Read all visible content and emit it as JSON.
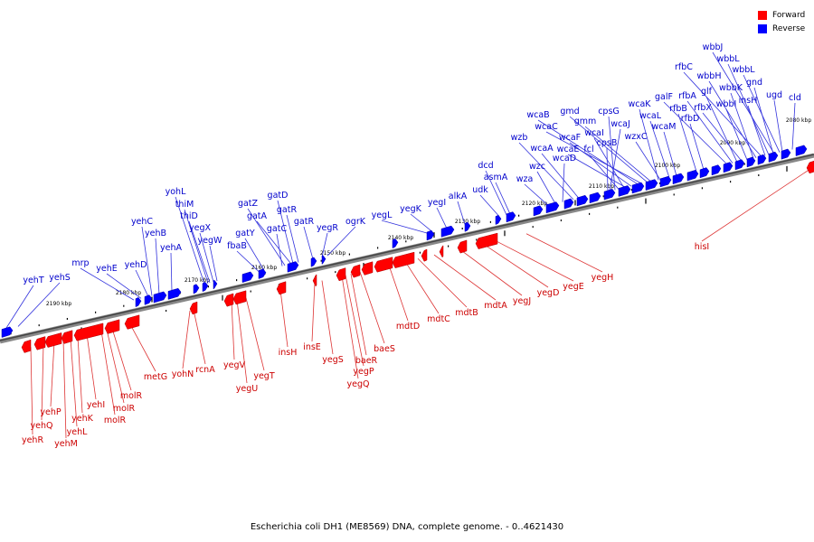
{
  "legend": {
    "forward": "Forward",
    "reverse": "Reverse"
  },
  "colors": {
    "forward": "#ff0000",
    "reverse": "#0000ff",
    "forward_label": "#cc0000",
    "reverse_label": "#0000cc",
    "forward_line": "#dd3333",
    "reverse_line": "#3333dd"
  },
  "caption": "Escherichia coli DH1 (ME8569) DNA, complete genome. - 0..4621430",
  "scale_labels": [
    "2080 kbp",
    "2090 kbp",
    "2100 kbp",
    "2110 kbp",
    "2120 kbp",
    "2130 kbp",
    "2140 kbp",
    "2150 kbp",
    "2160 kbp",
    "2170 kbp",
    "2180 kbp",
    "2190 kbp"
  ],
  "reverse_genes": [
    "wbbJ",
    "wbbL",
    "rfbC",
    "wbbH",
    "wbbL",
    "glf",
    "wbbK",
    "gnd",
    "galF",
    "rfbA",
    "rfbX",
    "wbbI",
    "insH",
    "ugd",
    "cld",
    "gmd",
    "gmm",
    "wcaB",
    "wcaC",
    "wcaF",
    "wcaE",
    "fcl",
    "wcaI",
    "cpsG",
    "wcaJ",
    "wcaK",
    "wcaL",
    "wcaM",
    "rfbB",
    "rfbD",
    "wzxC",
    "cpsB",
    "wzb",
    "wcaA",
    "wcaD",
    "wzc",
    "wza",
    "dcd",
    "asmA",
    "udk",
    "alkA",
    "yegI",
    "yegK",
    "yegL",
    "ogrK",
    "yegR",
    "gatR",
    "gatD",
    "gatZ",
    "gatA",
    "gatY",
    "gatC",
    "gatR",
    "fbaB",
    "yohL",
    "thiM",
    "thiD",
    "yegX",
    "yegW",
    "yehC",
    "yehB",
    "yehA",
    "yehE",
    "yehD",
    "mrp",
    "yehT",
    "yehS"
  ],
  "forward_genes": [
    "hisI",
    "yegH",
    "yegE",
    "yegD",
    "yegJ",
    "mdtA",
    "mdtB",
    "mdtC",
    "mdtD",
    "baeS",
    "baeR",
    "yegP",
    "yegQ",
    "yegS",
    "insE",
    "insH",
    "yegT",
    "yegV",
    "yegU",
    "rcnA",
    "yohN",
    "metG",
    "molR",
    "molR",
    "molR",
    "yehI",
    "yehK",
    "yehL",
    "yehM",
    "yehP",
    "yehQ",
    "yehR"
  ]
}
